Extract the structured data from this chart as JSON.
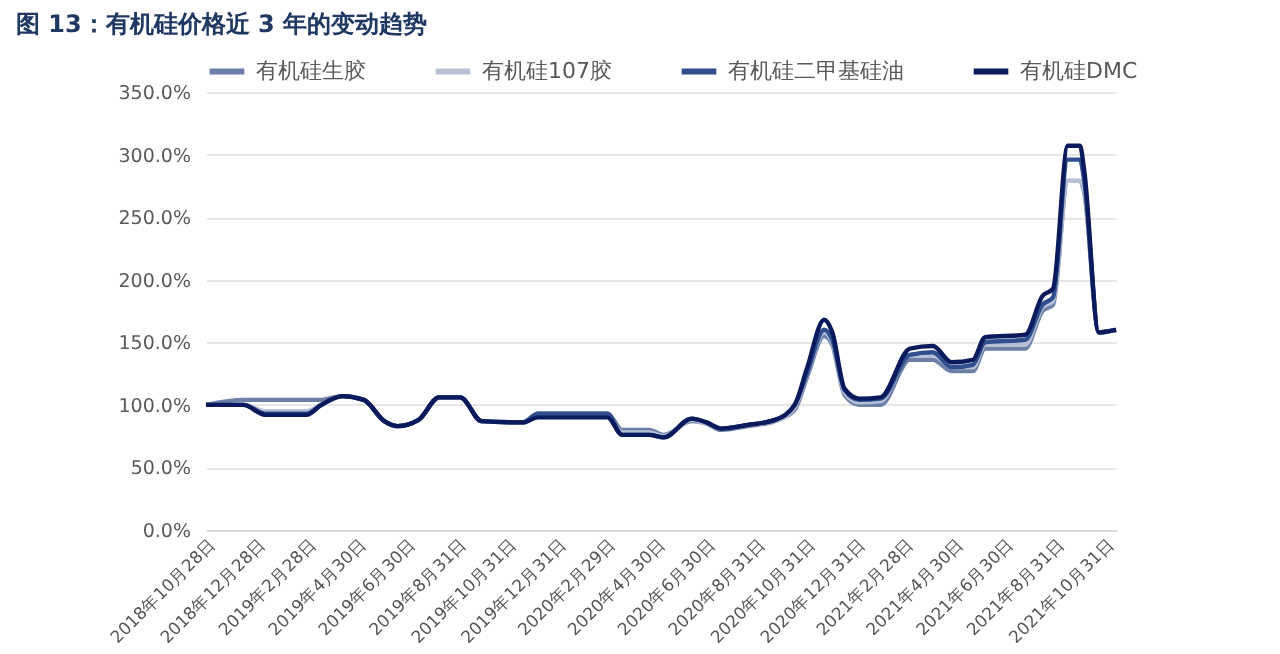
{
  "chart_data": {
    "type": "line",
    "title": "图 13：有机硅价格近 3 年的变动趋势",
    "x": [
      "2018-10-28",
      "2018-12-13",
      "2019-01-08",
      "2019-02-28",
      "2019-03-18",
      "2019-04-13",
      "2019-05-09",
      "2019-06-03",
      "2019-06-19",
      "2019-07-15",
      "2019-08-09",
      "2019-09-04",
      "2019-09-30",
      "2019-11-20",
      "2019-12-08",
      "2020-03-02",
      "2020-03-20",
      "2020-04-22",
      "2020-05-10",
      "2020-06-13",
      "2020-07-01",
      "2020-07-19",
      "2020-08-21",
      "2020-09-23",
      "2020-10-17",
      "2020-11-01",
      "2020-11-22",
      "2020-12-02",
      "2020-12-17",
      "2021-01-04",
      "2021-01-30",
      "2021-03-07",
      "2021-04-04",
      "2021-04-27",
      "2021-05-23",
      "2021-06-07",
      "2021-07-26",
      "2021-08-16",
      "2021-08-29",
      "2021-09-16",
      "2021-10-01",
      "2021-10-06",
      "2021-10-24",
      "2021-11-14"
    ],
    "series": [
      {
        "name": "有机硅生胶",
        "color": "#6b7fa8",
        "values": [
          100,
          104,
          104,
          104,
          104,
          107,
          104,
          87,
          83,
          88,
          106,
          106,
          87,
          86,
          93,
          93,
          80,
          80,
          76,
          87,
          85,
          80,
          83,
          87,
          96,
          122,
          155,
          148,
          108,
          100,
          100,
          136,
          136,
          127,
          127,
          145,
          145,
          175,
          180,
          279,
          279,
          270,
          158,
          160
        ]
      },
      {
        "name": "有机硅107胶",
        "color": "#b8c0d6",
        "values": [
          100,
          100,
          95,
          95,
          100,
          107,
          104,
          87,
          83,
          88,
          106,
          106,
          87,
          86,
          91,
          91,
          78,
          78,
          75,
          88,
          85,
          81,
          84,
          87,
          98,
          124,
          158,
          150,
          110,
          102,
          103,
          140,
          140,
          130,
          130,
          148,
          148,
          178,
          183,
          279,
          279,
          272,
          158,
          160
        ]
      },
      {
        "name": "有机硅二甲基硅油",
        "color": "#2f4f8f",
        "values": [
          100,
          100,
          93,
          93,
          100,
          107,
          104,
          87,
          83,
          88,
          106,
          106,
          87,
          86,
          93,
          93,
          76,
          76,
          74,
          89,
          86,
          81,
          84,
          88,
          100,
          125,
          160,
          152,
          112,
          104,
          105,
          140,
          142,
          130,
          132,
          150,
          152,
          180,
          186,
          296,
          296,
          280,
          158,
          160
        ]
      },
      {
        "name": "有机硅DMC",
        "color": "#0a1a5c",
        "values": [
          100,
          100,
          92,
          92,
          100,
          107,
          104,
          87,
          83,
          88,
          106,
          106,
          87,
          86,
          90,
          90,
          76,
          76,
          74,
          89,
          86,
          81,
          84,
          88,
          100,
          129,
          168,
          158,
          113,
          105,
          106,
          145,
          147,
          134,
          136,
          154,
          156,
          187,
          193,
          307,
          307,
          288,
          158,
          160
        ]
      }
    ],
    "xlim": [
      "2018-10-28",
      "2021-11-14"
    ],
    "xticks": [
      {
        "value": "2018-10-28",
        "label": "2018年10月28日"
      },
      {
        "value": "2018-12-28",
        "label": "2018年12月28日"
      },
      {
        "value": "2019-02-28",
        "label": "2019年2月28日"
      },
      {
        "value": "2019-04-30",
        "label": "2019年4月30日"
      },
      {
        "value": "2019-06-30",
        "label": "2019年6月30日"
      },
      {
        "value": "2019-08-31",
        "label": "2019年8月31日"
      },
      {
        "value": "2019-10-31",
        "label": "2019年10月31日"
      },
      {
        "value": "2019-12-31",
        "label": "2019年12月31日"
      },
      {
        "value": "2020-02-29",
        "label": "2020年2月29日"
      },
      {
        "value": "2020-04-30",
        "label": "2020年4月30日"
      },
      {
        "value": "2020-06-30",
        "label": "2020年6月30日"
      },
      {
        "value": "2020-08-31",
        "label": "2020年8月31日"
      },
      {
        "value": "2020-10-31",
        "label": "2020年10月31日"
      },
      {
        "value": "2020-12-31",
        "label": "2020年12月31日"
      },
      {
        "value": "2021-02-28",
        "label": "2021年2月28日"
      },
      {
        "value": "2021-04-30",
        "label": "2021年4月30日"
      },
      {
        "value": "2021-06-30",
        "label": "2021年6月30日"
      },
      {
        "value": "2021-08-31",
        "label": "2021年8月31日"
      },
      {
        "value": "2021-10-31",
        "label": "2021年10月31日"
      }
    ],
    "ylim": [
      0,
      350
    ],
    "yticks": [
      {
        "value": 0,
        "label": "0.0%"
      },
      {
        "value": 50,
        "label": "50.0%"
      },
      {
        "value": 100,
        "label": "100.0%"
      },
      {
        "value": 150,
        "label": "150.0%"
      },
      {
        "value": 200,
        "label": "200.0%"
      },
      {
        "value": 250,
        "label": "250.0%"
      },
      {
        "value": 300,
        "label": "300.0%"
      },
      {
        "value": 350,
        "label": "350.0%"
      }
    ],
    "grid": "y",
    "legend": "top"
  }
}
